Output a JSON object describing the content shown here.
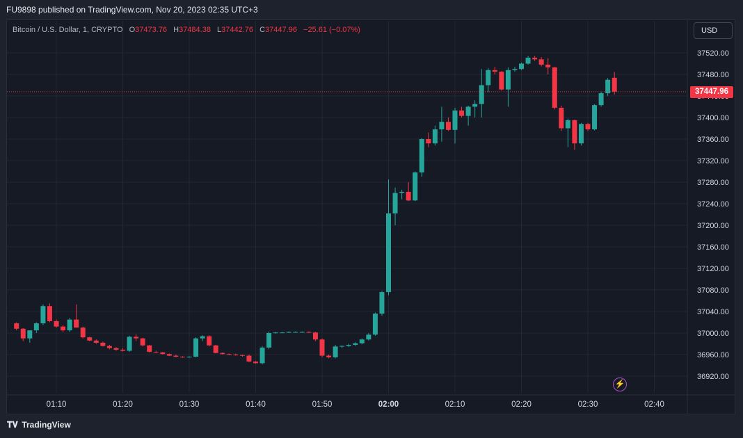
{
  "header": {
    "published": "FU9898 published on TradingView.com, Nov 20, 2023 02:35 UTC+3"
  },
  "legend": {
    "symbol": "Bitcoin / U.S. Dollar, 1, CRYPTO",
    "o_label": "O",
    "o": "37473.76",
    "h_label": "H",
    "h": "37484.38",
    "l_label": "L",
    "l": "37442.76",
    "c_label": "C",
    "c": "37447.96",
    "change": "−25.61 (−0.07%)"
  },
  "currency_button": "USD",
  "last_price_label": "37447.96",
  "footer": {
    "brand": "TradingView",
    "logo": "tradingview-logo"
  },
  "colors": {
    "up": "#26a69a",
    "down": "#f23645",
    "background": "#161a25",
    "grid": "#232734"
  },
  "chart_data": {
    "type": "candlestick",
    "symbol": "BTCUSD",
    "interval": "1 minute",
    "y_range": [
      36890,
      37545
    ],
    "y_ticks": [
      "37520.00",
      "37480.00",
      "37440.00",
      "37400.00",
      "37360.00",
      "37320.00",
      "37280.00",
      "37240.00",
      "37200.00",
      "37160.00",
      "37120.00",
      "37080.00",
      "37040.00",
      "37000.00",
      "36960.00",
      "36920.00"
    ],
    "x_ticks": [
      "01:10",
      "01:20",
      "01:30",
      "01:40",
      "01:50",
      "02:00",
      "02:10",
      "02:20",
      "02:30",
      "02:40"
    ],
    "x_tick_minutes": [
      10,
      20,
      30,
      40,
      50,
      60,
      70,
      80,
      90,
      100
    ],
    "x_range_minutes": [
      3.5,
      108
    ],
    "last_price": 37447.96,
    "candles_minute_open_high_low_close": [
      [
        4,
        37018,
        37020,
        37005,
        37008
      ],
      [
        5,
        37008,
        37009,
        36985,
        36990
      ],
      [
        6,
        36990,
        37005,
        36982,
        37005
      ],
      [
        7,
        37005,
        37020,
        37000,
        37018
      ],
      [
        8,
        37018,
        37053,
        37015,
        37050
      ],
      [
        9,
        37050,
        37055,
        37020,
        37022
      ],
      [
        10,
        37022,
        37025,
        37010,
        37012
      ],
      [
        11,
        37012,
        37015,
        37002,
        37005
      ],
      [
        12,
        37005,
        37028,
        37002,
        37025
      ],
      [
        13,
        37025,
        37053,
        37020,
        37010
      ],
      [
        14,
        37010,
        37012,
        36990,
        36992
      ],
      [
        15,
        36992,
        36993,
        36985,
        36986
      ],
      [
        16,
        36986,
        36988,
        36980,
        36982
      ],
      [
        17,
        36982,
        36984,
        36975,
        36976
      ],
      [
        18,
        36976,
        36978,
        36970,
        36972
      ],
      [
        19,
        36972,
        36974,
        36967,
        36969
      ],
      [
        20,
        36969,
        36972,
        36966,
        36967
      ],
      [
        21,
        36967,
        36995,
        36965,
        36993
      ],
      [
        22,
        36993,
        36998,
        36985,
        36990
      ],
      [
        23,
        36990,
        36991,
        36975,
        36977
      ],
      [
        24,
        36977,
        36978,
        36964,
        36965
      ],
      [
        25,
        36965,
        36967,
        36963,
        36964
      ],
      [
        26,
        36964,
        36965,
        36960,
        36961
      ],
      [
        27,
        36961,
        36962,
        36957,
        36958
      ],
      [
        28,
        36958,
        36960,
        36955,
        36956
      ],
      [
        29,
        36956,
        36957,
        36954,
        36955
      ],
      [
        30,
        36955,
        36957,
        36954,
        36956
      ],
      [
        31,
        36956,
        36992,
        36955,
        36990
      ],
      [
        32,
        36990,
        36996,
        36985,
        36994
      ],
      [
        33,
        36994,
        36996,
        36975,
        36977
      ],
      [
        34,
        36977,
        36978,
        36962,
        36963
      ],
      [
        35,
        36963,
        36964,
        36960,
        36961
      ],
      [
        36,
        36961,
        36962,
        36959,
        36960
      ],
      [
        37,
        36960,
        36962,
        36958,
        36959
      ],
      [
        38,
        36959,
        36960,
        36956,
        36958
      ],
      [
        39,
        36958,
        36960,
        36946,
        36947
      ],
      [
        40,
        36947,
        36948,
        36943,
        36944
      ],
      [
        41,
        36944,
        36975,
        36942,
        36973
      ],
      [
        42,
        36973,
        37003,
        36970,
        37000
      ],
      [
        43,
        37000,
        37002,
        36999,
        37001
      ],
      [
        44,
        37001,
        37002,
        37000,
        37001
      ],
      [
        45,
        37001,
        37003,
        37000,
        37002
      ],
      [
        46,
        37002,
        37003,
        37001,
        37002
      ],
      [
        47,
        37002,
        37003,
        37001,
        37002
      ],
      [
        48,
        37002,
        37003,
        37000,
        37001
      ],
      [
        49,
        37001,
        37002,
        36985,
        36988
      ],
      [
        50,
        36988,
        36990,
        36955,
        36958
      ],
      [
        51,
        36958,
        36960,
        36953,
        36955
      ],
      [
        52,
        36955,
        36978,
        36953,
        36975
      ],
      [
        53,
        36975,
        36977,
        36972,
        36976
      ],
      [
        54,
        36976,
        36980,
        36974,
        36978
      ],
      [
        55,
        36978,
        36983,
        36976,
        36981
      ],
      [
        56,
        36981,
        36990,
        36979,
        36988
      ],
      [
        57,
        36988,
        37000,
        36986,
        36997
      ],
      [
        58,
        36997,
        37038,
        36995,
        37036
      ],
      [
        59,
        37036,
        37078,
        37032,
        37076
      ],
      [
        60,
        37076,
        37285,
        37070,
        37222
      ],
      [
        61,
        37222,
        37270,
        37200,
        37260
      ],
      [
        62,
        37260,
        37266,
        37248,
        37262
      ],
      [
        63,
        37262,
        37280,
        37245,
        37246
      ],
      [
        64,
        37246,
        37300,
        37245,
        37298
      ],
      [
        65,
        37298,
        37362,
        37290,
        37360
      ],
      [
        66,
        37360,
        37372,
        37345,
        37352
      ],
      [
        67,
        37352,
        37385,
        37348,
        37378
      ],
      [
        68,
        37378,
        37420,
        37355,
        37392
      ],
      [
        69,
        37392,
        37400,
        37375,
        37377
      ],
      [
        70,
        37377,
        37418,
        37352,
        37413
      ],
      [
        71,
        37413,
        37420,
        37400,
        37403
      ],
      [
        72,
        37403,
        37422,
        37385,
        37420
      ],
      [
        73,
        37420,
        37432,
        37400,
        37425
      ],
      [
        74,
        37425,
        37490,
        37400,
        37460
      ],
      [
        75,
        37460,
        37492,
        37447,
        37488
      ],
      [
        76,
        37488,
        37494,
        37480,
        37485
      ],
      [
        77,
        37485,
        37486,
        37450,
        37452
      ],
      [
        78,
        37452,
        37493,
        37420,
        37488
      ],
      [
        79,
        37488,
        37494,
        37485,
        37490
      ],
      [
        80,
        37490,
        37502,
        37488,
        37500
      ],
      [
        81,
        37500,
        37514,
        37498,
        37511
      ],
      [
        82,
        37511,
        37514,
        37505,
        37508
      ],
      [
        83,
        37508,
        37512,
        37495,
        37498
      ],
      [
        84,
        37498,
        37510,
        37480,
        37493
      ],
      [
        85,
        37493,
        37494,
        37415,
        37418
      ],
      [
        86,
        37418,
        37422,
        37375,
        37380
      ],
      [
        87,
        37380,
        37398,
        37345,
        37395
      ],
      [
        88,
        37395,
        37396,
        37340,
        37352
      ],
      [
        89,
        37352,
        37390,
        37348,
        37388
      ],
      [
        90,
        37388,
        37390,
        37375,
        37378
      ],
      [
        91,
        37378,
        37425,
        37376,
        37423
      ],
      [
        92,
        37423,
        37448,
        37420,
        37445
      ],
      [
        93,
        37445,
        37473,
        37440,
        37470
      ],
      [
        94,
        37473.76,
        37484.38,
        37442.76,
        37447.96
      ]
    ]
  }
}
